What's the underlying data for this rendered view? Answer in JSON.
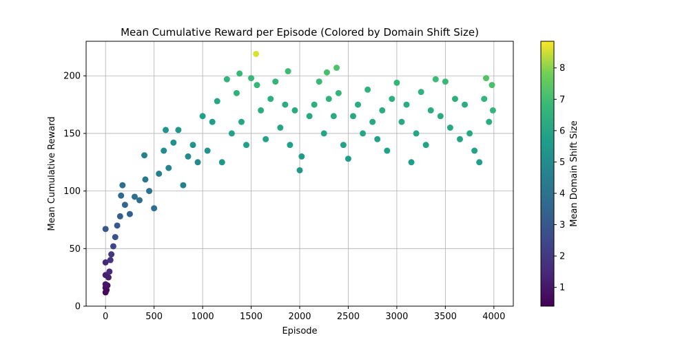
{
  "chart_data": {
    "type": "scatter",
    "title": "Mean Cumulative Reward per Episode (Colored by Domain Shift Size)",
    "xlabel": "Episode",
    "ylabel": "Mean Cumulative Reward",
    "xlim": [
      -200,
      4200
    ],
    "ylim": [
      0,
      230
    ],
    "x_ticks": [
      0,
      500,
      1000,
      1500,
      2000,
      2500,
      3000,
      3500,
      4000
    ],
    "y_ticks": [
      0,
      50,
      100,
      150,
      200
    ],
    "grid": true,
    "colormap": "viridis",
    "colorbar": {
      "label": "Mean Domain Shift Size",
      "range": [
        0.4,
        8.85
      ],
      "ticks": [
        1,
        2,
        3,
        4,
        5,
        6,
        7,
        8
      ]
    },
    "series": [
      {
        "points": [
          [
            0,
            67,
            3.0
          ],
          [
            0,
            38,
            1.5
          ],
          [
            0,
            27,
            1.2
          ],
          [
            0,
            19,
            0.9
          ],
          [
            0,
            16,
            0.7
          ],
          [
            0,
            12,
            0.5
          ],
          [
            10,
            14,
            0.6
          ],
          [
            20,
            18,
            0.8
          ],
          [
            30,
            25,
            1.2
          ],
          [
            40,
            30,
            1.5
          ],
          [
            50,
            40,
            1.8
          ],
          [
            60,
            45,
            2.0
          ],
          [
            80,
            52,
            2.4
          ],
          [
            100,
            60,
            2.8
          ],
          [
            120,
            70,
            3.0
          ],
          [
            150,
            78,
            3.2
          ],
          [
            160,
            96,
            3.6
          ],
          [
            175,
            105,
            3.8
          ],
          [
            200,
            88,
            3.5
          ],
          [
            250,
            80,
            3.3
          ],
          [
            300,
            95,
            3.8
          ],
          [
            350,
            92,
            3.8
          ],
          [
            400,
            131,
            4.6
          ],
          [
            410,
            110,
            4.2
          ],
          [
            450,
            100,
            4.0
          ],
          [
            500,
            85,
            3.8
          ],
          [
            550,
            115,
            4.5
          ],
          [
            600,
            135,
            5.0
          ],
          [
            620,
            153,
            5.3
          ],
          [
            650,
            120,
            4.7
          ],
          [
            700,
            142,
            5.2
          ],
          [
            750,
            153,
            5.4
          ],
          [
            800,
            105,
            4.6
          ],
          [
            850,
            130,
            5.0
          ],
          [
            900,
            140,
            5.3
          ],
          [
            950,
            125,
            5.0
          ],
          [
            1000,
            165,
            5.8
          ],
          [
            1050,
            135,
            5.3
          ],
          [
            1100,
            160,
            5.7
          ],
          [
            1150,
            178,
            6.0
          ],
          [
            1200,
            125,
            5.4
          ],
          [
            1250,
            197,
            6.6
          ],
          [
            1300,
            150,
            5.9
          ],
          [
            1350,
            185,
            6.5
          ],
          [
            1380,
            202,
            6.8
          ],
          [
            1400,
            160,
            6.0
          ],
          [
            1450,
            140,
            5.8
          ],
          [
            1500,
            198,
            6.8
          ],
          [
            1550,
            219,
            8.6
          ],
          [
            1560,
            192,
            6.7
          ],
          [
            1600,
            170,
            6.3
          ],
          [
            1650,
            145,
            5.9
          ],
          [
            1700,
            180,
            6.4
          ],
          [
            1750,
            195,
            6.6
          ],
          [
            1800,
            155,
            6.0
          ],
          [
            1850,
            175,
            6.3
          ],
          [
            1880,
            204,
            6.9
          ],
          [
            1900,
            140,
            5.8
          ],
          [
            1950,
            170,
            6.2
          ],
          [
            2000,
            118,
            5.5
          ],
          [
            2020,
            130,
            5.6
          ],
          [
            2100,
            165,
            6.1
          ],
          [
            2150,
            175,
            6.4
          ],
          [
            2200,
            195,
            6.8
          ],
          [
            2250,
            150,
            6.0
          ],
          [
            2280,
            203,
            7.1
          ],
          [
            2300,
            180,
            6.5
          ],
          [
            2350,
            165,
            6.2
          ],
          [
            2380,
            207,
            7.2
          ],
          [
            2400,
            185,
            6.7
          ],
          [
            2450,
            140,
            5.9
          ],
          [
            2500,
            128,
            5.6
          ],
          [
            2550,
            165,
            6.1
          ],
          [
            2600,
            175,
            6.3
          ],
          [
            2650,
            150,
            6.0
          ],
          [
            2700,
            188,
            6.5
          ],
          [
            2750,
            160,
            6.1
          ],
          [
            2800,
            145,
            5.9
          ],
          [
            2850,
            170,
            6.3
          ],
          [
            2900,
            135,
            5.8
          ],
          [
            2950,
            180,
            6.4
          ],
          [
            3000,
            194,
            6.7
          ],
          [
            3050,
            160,
            6.1
          ],
          [
            3100,
            175,
            6.3
          ],
          [
            3150,
            125,
            5.7
          ],
          [
            3200,
            150,
            6.0
          ],
          [
            3250,
            186,
            6.5
          ],
          [
            3300,
            140,
            5.9
          ],
          [
            3350,
            170,
            6.3
          ],
          [
            3400,
            197,
            6.9
          ],
          [
            3450,
            165,
            6.2
          ],
          [
            3500,
            195,
            6.8
          ],
          [
            3550,
            155,
            6.1
          ],
          [
            3600,
            180,
            6.4
          ],
          [
            3650,
            145,
            5.9
          ],
          [
            3700,
            175,
            6.3
          ],
          [
            3750,
            150,
            6.1
          ],
          [
            3800,
            135,
            5.9
          ],
          [
            3850,
            125,
            5.8
          ],
          [
            3900,
            180,
            6.6
          ],
          [
            3920,
            198,
            7.3
          ],
          [
            3950,
            160,
            6.3
          ],
          [
            3980,
            192,
            7.1
          ],
          [
            3990,
            170,
            6.7
          ]
        ]
      }
    ]
  }
}
